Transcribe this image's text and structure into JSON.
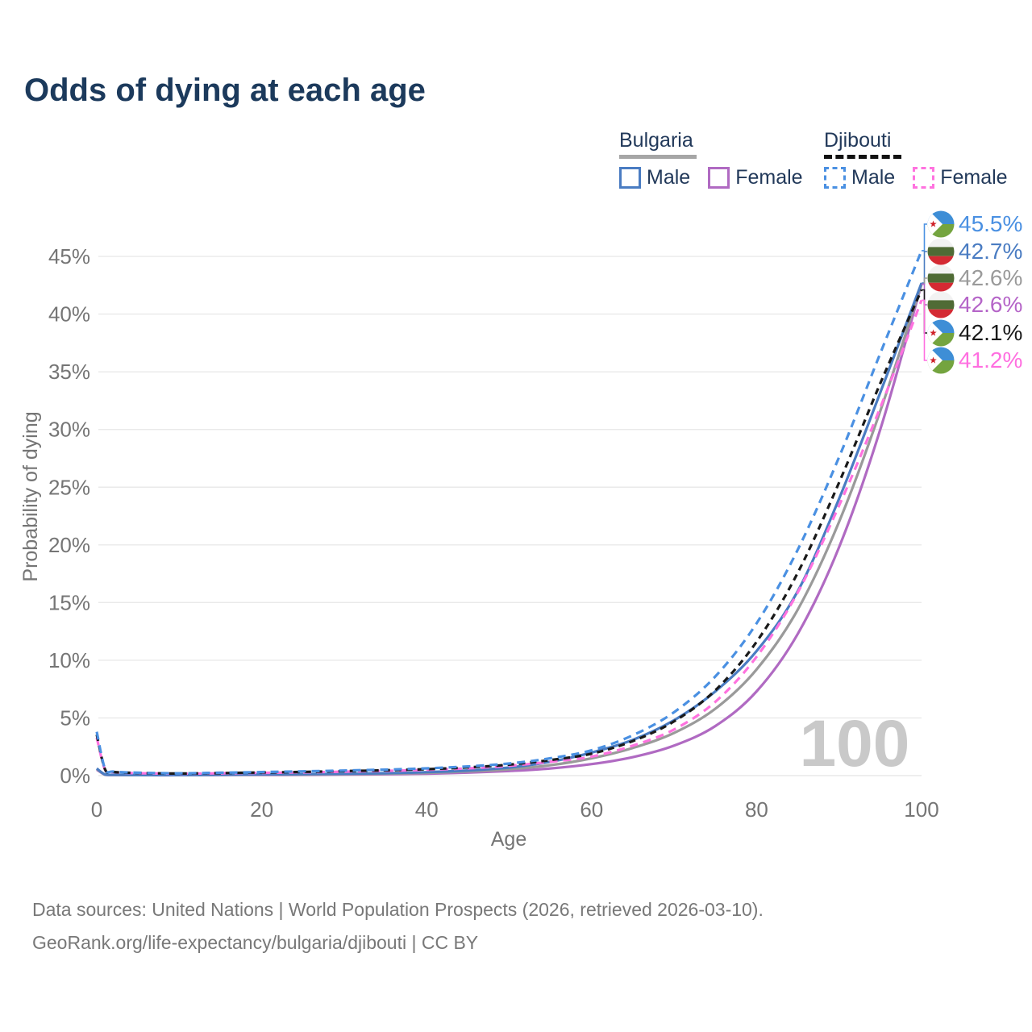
{
  "header": {
    "title": "Odds of dying at each age"
  },
  "legend": {
    "groups": [
      {
        "id": "bulgaria",
        "label": "Bulgaria",
        "underline_style": "solid",
        "underline_color": "#a6a6a6",
        "items": [
          {
            "label": "Male",
            "color": "#4a7cc2",
            "dashed": false
          },
          {
            "label": "Female",
            "color": "#b06ac2",
            "dashed": false
          }
        ]
      },
      {
        "id": "djibouti",
        "label": "Djibouti",
        "underline_style": "dashed",
        "underline_color": "#111111",
        "items": [
          {
            "label": "Male",
            "color": "#4a90e2",
            "dashed": true
          },
          {
            "label": "Female",
            "color": "#ff72df",
            "dashed": true
          }
        ]
      }
    ]
  },
  "chart_data": {
    "type": "line",
    "title": "Odds of dying at each age",
    "xlabel": "Age",
    "ylabel": "Probability of dying",
    "x_ticks": [
      0,
      20,
      40,
      60,
      80,
      100
    ],
    "y_ticks": [
      "0%",
      "5%",
      "10%",
      "15%",
      "20%",
      "25%",
      "30%",
      "35%",
      "40%",
      "45%"
    ],
    "xlim": [
      0,
      100
    ],
    "ylim_percent": [
      0,
      47
    ],
    "grid": "horizontal",
    "legend_position": "top-right",
    "watermark": "100",
    "ages": [
      0,
      1,
      2,
      5,
      10,
      15,
      20,
      25,
      30,
      35,
      40,
      45,
      50,
      55,
      60,
      65,
      70,
      75,
      80,
      85,
      90,
      95,
      100
    ],
    "series": [
      {
        "name": "Bulgaria Female",
        "country": "Bulgaria",
        "sex": "Female",
        "color": "#b06ac2",
        "dash": null,
        "values": [
          0.52,
          0.08,
          0.05,
          0.04,
          0.04,
          0.05,
          0.06,
          0.07,
          0.09,
          0.12,
          0.17,
          0.26,
          0.4,
          0.62,
          1.0,
          1.6,
          2.6,
          4.3,
          7.3,
          12.3,
          19.8,
          30.0,
          42.6
        ],
        "end_label": "42.6%"
      },
      {
        "name": "Bulgaria Both sexes",
        "country": "Bulgaria",
        "sex": "Both",
        "color": "#9a9a9a",
        "dash": null,
        "values": [
          0.58,
          0.09,
          0.06,
          0.05,
          0.05,
          0.07,
          0.09,
          0.1,
          0.13,
          0.17,
          0.24,
          0.36,
          0.55,
          0.9,
          1.5,
          2.4,
          3.7,
          5.8,
          9.2,
          14.4,
          22.0,
          31.6,
          42.6
        ],
        "end_label": "42.6%"
      },
      {
        "name": "Bulgaria Male",
        "country": "Bulgaria",
        "sex": "Male",
        "color": "#4a7cc2",
        "dash": null,
        "values": [
          0.62,
          0.1,
          0.07,
          0.05,
          0.05,
          0.08,
          0.11,
          0.13,
          0.16,
          0.21,
          0.3,
          0.45,
          0.7,
          1.2,
          2.0,
          3.1,
          4.8,
          7.3,
          10.8,
          16.0,
          24.0,
          33.2,
          42.7
        ],
        "end_label": "42.7%"
      },
      {
        "name": "Djibouti Female",
        "country": "Djibouti",
        "sex": "Female",
        "color": "#ff72df",
        "dash": "10 7",
        "values": [
          3.3,
          0.52,
          0.3,
          0.21,
          0.17,
          0.2,
          0.24,
          0.28,
          0.34,
          0.41,
          0.5,
          0.63,
          0.85,
          1.2,
          1.65,
          2.6,
          4.0,
          6.4,
          10.3,
          15.9,
          23.4,
          31.9,
          41.2
        ],
        "end_label": "41.2%"
      },
      {
        "name": "Djibouti Both sexes",
        "country": "Djibouti",
        "sex": "Both",
        "color": "#1a1a1a",
        "dash": "8 6",
        "values": [
          3.55,
          0.56,
          0.32,
          0.23,
          0.18,
          0.22,
          0.27,
          0.32,
          0.39,
          0.46,
          0.56,
          0.71,
          0.95,
          1.35,
          1.9,
          3.0,
          4.7,
          7.4,
          11.6,
          17.6,
          25.4,
          34.0,
          42.1
        ],
        "end_label": "42.1%"
      },
      {
        "name": "Djibouti Male",
        "country": "Djibouti",
        "sex": "Male",
        "color": "#4a90e2",
        "dash": "10 7",
        "values": [
          3.8,
          0.6,
          0.35,
          0.25,
          0.2,
          0.25,
          0.31,
          0.37,
          0.44,
          0.52,
          0.63,
          0.8,
          1.05,
          1.5,
          2.2,
          3.5,
          5.5,
          8.6,
          13.2,
          19.6,
          27.6,
          36.6,
          45.5
        ],
        "end_label": "45.5%"
      }
    ]
  },
  "end_labels": [
    {
      "value": "45.5%",
      "color": "#4a90e2",
      "flag": "djibouti",
      "end_value": 45.5
    },
    {
      "value": "42.7%",
      "color": "#4a7cc2",
      "flag": "bulgaria",
      "end_value": 42.7
    },
    {
      "value": "42.6%",
      "color": "#9a9a9a",
      "flag": "bulgaria",
      "end_value": 42.6
    },
    {
      "value": "42.6%",
      "color": "#b565c8",
      "flag": "bulgaria",
      "end_value": 42.6
    },
    {
      "value": "42.1%",
      "color": "#1a1a1a",
      "flag": "djibouti",
      "end_value": 42.1
    },
    {
      "value": "41.2%",
      "color": "#ff6ee0",
      "flag": "djibouti",
      "end_value": 41.2
    }
  ],
  "colors": {
    "title_text": "#1c3a5c",
    "legend_text": "#22395a",
    "axis_text": "#757575",
    "gridline": "#e9e9e9",
    "watermark": "#c9c9c9"
  },
  "footer": {
    "line1": "Data sources: United Nations | World Population Prospects (2026, retrieved 2026-03-10).",
    "line2": "GeoRank.org/life-expectancy/bulgaria/djibouti | CC BY"
  }
}
